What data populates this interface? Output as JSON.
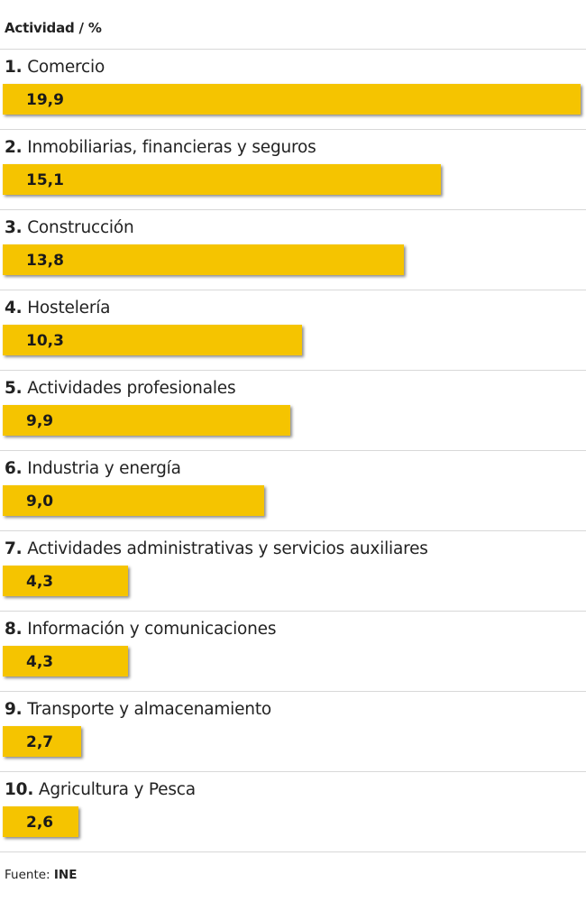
{
  "chart_data": {
    "type": "bar",
    "orientation": "horizontal",
    "header": "Actividad / %",
    "categories": [
      "Comercio",
      "Inmobiliarias, financieras y seguros",
      "Construcción",
      "Hostelería",
      "Actividades profesionales",
      "Industria y energía",
      "Actividades administrativas y servicios auxiliares",
      "Información y comunicaciones",
      "Transporte y almacenamiento",
      "Agricultura y Pesca"
    ],
    "ranks": [
      "1.",
      "2.",
      "3.",
      "4.",
      "5.",
      "6.",
      "7.",
      "8.",
      "9.",
      "10."
    ],
    "values": [
      19.9,
      15.1,
      13.8,
      10.3,
      9.9,
      9.0,
      4.3,
      4.3,
      2.7,
      2.6
    ],
    "value_labels": [
      "19,9",
      "15,1",
      "13,8",
      "10,3",
      "9,9",
      "9,0",
      "4,3",
      "4,3",
      "2,7",
      "2,6"
    ],
    "xlim": [
      0,
      19.9
    ],
    "grid": false,
    "legend": "none",
    "bar_color": "#f5c400"
  },
  "source": {
    "label": "Fuente:",
    "value": "INE"
  }
}
